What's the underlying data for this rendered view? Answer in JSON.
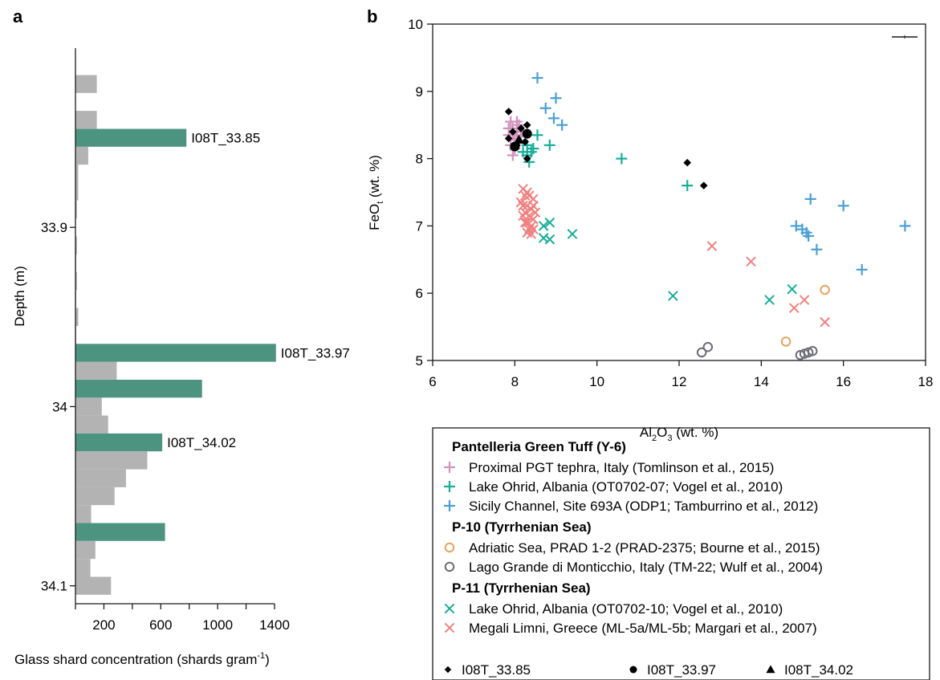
{
  "chart_data": [
    {
      "type": "bar",
      "orientation": "horizontal",
      "panel_label": "a",
      "xlabel": "Glass shard concentration (shards gram",
      "xlabel_sup": "-1",
      "xlabel_tail": ")",
      "ylabel": "Depth (m)",
      "xlim": [
        0,
        1400
      ],
      "ylim": [
        34.11,
        33.8
      ],
      "xticks": [
        "200",
        "600",
        "1000",
        "1400"
      ],
      "yticks": [
        "33.9",
        "34",
        "34.1"
      ],
      "bar_height": 0.01,
      "grey_color": "#b3b3b3",
      "green_color": "#4d9480",
      "background_bars": [
        {
          "depth": 33.82,
          "value": 150
        },
        {
          "depth": 33.84,
          "value": 150
        },
        {
          "depth": 33.86,
          "value": 90
        },
        {
          "depth": 33.87,
          "value": 20
        },
        {
          "depth": 33.88,
          "value": 20
        },
        {
          "depth": 33.89,
          "value": 10
        },
        {
          "depth": 33.91,
          "value": 10
        },
        {
          "depth": 33.92,
          "value": 5
        },
        {
          "depth": 33.93,
          "value": 10
        },
        {
          "depth": 33.94,
          "value": 5
        },
        {
          "depth": 33.95,
          "value": 20
        },
        {
          "depth": 33.96,
          "value": 5
        },
        {
          "depth": 33.97,
          "value": 20
        },
        {
          "depth": 33.98,
          "value": 290
        },
        {
          "depth": 34.0,
          "value": 185
        },
        {
          "depth": 34.01,
          "value": 230
        },
        {
          "depth": 34.03,
          "value": 505
        },
        {
          "depth": 34.04,
          "value": 355
        },
        {
          "depth": 34.05,
          "value": 275
        },
        {
          "depth": 34.06,
          "value": 110
        },
        {
          "depth": 34.08,
          "value": 140
        },
        {
          "depth": 34.09,
          "value": 105
        },
        {
          "depth": 34.1,
          "value": 250
        }
      ],
      "highlighted_bars": [
        {
          "depth": 33.85,
          "value": 780,
          "label": "I08T_33.85"
        },
        {
          "depth": 33.97,
          "value": 1410,
          "label": "I08T_33.97"
        },
        {
          "depth": 33.99,
          "value": 890,
          "label": ""
        },
        {
          "depth": 34.02,
          "value": 610,
          "label": "I08T_34.02"
        },
        {
          "depth": 34.07,
          "value": 630,
          "label": ""
        }
      ]
    },
    {
      "type": "scatter",
      "panel_label": "b",
      "xlabel_main": "Al",
      "xlabel_sub1": "2",
      "xlabel_mid": "O",
      "xlabel_sub2": "3",
      "xlabel_tail": " (wt. %)",
      "ylabel_main": "FeO",
      "ylabel_sub": "t",
      "ylabel_tail": " (wt. %)",
      "xlim": [
        6,
        18
      ],
      "ylim": [
        5,
        10
      ],
      "xticks": [
        "6",
        "8",
        "10",
        "12",
        "14",
        "16",
        "18"
      ],
      "yticks": [
        "5",
        "6",
        "7",
        "8",
        "9",
        "10"
      ],
      "series": [
        {
          "name": "Proximal PGT tephra, Italy (Tomlinson et al., 2015)",
          "group": "Pantelleria Green Tuff (Y-6)",
          "marker": "plus",
          "color": "#d291bc",
          "points": [
            [
              7.85,
              8.35
            ],
            [
              7.9,
              8.55
            ],
            [
              7.95,
              8.45
            ],
            [
              8.0,
              8.3
            ],
            [
              7.9,
              8.2
            ],
            [
              8.05,
              8.4
            ],
            [
              8.1,
              8.5
            ],
            [
              7.95,
              8.05
            ],
            [
              8.15,
              8.35
            ],
            [
              8.0,
              8.15
            ],
            [
              7.85,
              8.45
            ],
            [
              8.1,
              8.25
            ],
            [
              8.2,
              8.4
            ],
            [
              8.05,
              8.55
            ],
            [
              7.95,
              8.35
            ]
          ]
        },
        {
          "name": "Lake Ohrid, Albania (OT0702-07; Vogel et al., 2010)",
          "group": "Pantelleria Green Tuff (Y-6)",
          "marker": "plus",
          "color": "#17ad98",
          "points": [
            [
              8.2,
              8.1
            ],
            [
              8.3,
              8.2
            ],
            [
              8.4,
              8.1
            ],
            [
              8.35,
              7.95
            ],
            [
              8.55,
              8.35
            ],
            [
              8.85,
              8.2
            ],
            [
              8.45,
              8.15
            ],
            [
              8.3,
              8.05
            ],
            [
              10.6,
              8.0
            ],
            [
              12.2,
              7.6
            ]
          ]
        },
        {
          "name": "Sicily Channel, Site 693A (ODP1; Tamburrino et al., 2012)",
          "group": "Pantelleria Green Tuff (Y-6)",
          "marker": "plus",
          "color": "#4a9fd4",
          "points": [
            [
              8.55,
              9.2
            ],
            [
              8.75,
              8.75
            ],
            [
              9.0,
              8.9
            ],
            [
              8.95,
              8.6
            ],
            [
              9.15,
              8.5
            ],
            [
              15.2,
              7.4
            ],
            [
              16.0,
              7.3
            ],
            [
              17.5,
              7.0
            ],
            [
              14.85,
              7.0
            ],
            [
              15.0,
              6.95
            ],
            [
              15.1,
              6.9
            ],
            [
              15.15,
              6.85
            ],
            [
              15.35,
              6.65
            ],
            [
              16.45,
              6.35
            ]
          ]
        },
        {
          "name": "Adriatic Sea, PRAD 1-2 (PRAD-2375; Bourne et al., 2015)",
          "group": "P-10 (Tyrrhenian Sea)",
          "marker": "circle",
          "color": "#e8a35e",
          "points": [
            [
              15.55,
              6.05
            ],
            [
              14.6,
              5.28
            ]
          ]
        },
        {
          "name": "Lago Grande di Monticchio, Italy (TM-22; Wulf et al., 2004)",
          "group": "P-10 (Tyrrhenian Sea)",
          "marker": "circle",
          "color": "#6b6b75",
          "points": [
            [
              12.55,
              5.12
            ],
            [
              12.7,
              5.2
            ],
            [
              14.95,
              5.08
            ],
            [
              15.05,
              5.1
            ],
            [
              15.15,
              5.12
            ],
            [
              15.25,
              5.14
            ]
          ]
        },
        {
          "name": "Lake Ohrid, Albania (OT0702-10; Vogel et al., 2010)",
          "group": "P-11 (Tyrrhenian Sea)",
          "marker": "x",
          "color": "#17ad98",
          "points": [
            [
              8.7,
              7.0
            ],
            [
              8.85,
              7.05
            ],
            [
              8.7,
              6.82
            ],
            [
              8.85,
              6.8
            ],
            [
              9.4,
              6.88
            ],
            [
              11.85,
              5.96
            ],
            [
              14.2,
              5.9
            ],
            [
              14.75,
              6.06
            ]
          ]
        },
        {
          "name": "Megali Limni, Greece (ML-5a/ML-5b; Margari et al., 2007)",
          "group": "P-11 (Tyrrhenian Sea)",
          "marker": "x",
          "color": "#f08080",
          "points": [
            [
              8.2,
              7.55
            ],
            [
              8.25,
              7.45
            ],
            [
              8.35,
              7.45
            ],
            [
              8.45,
              7.4
            ],
            [
              8.2,
              7.3
            ],
            [
              8.3,
              7.3
            ],
            [
              8.4,
              7.25
            ],
            [
              8.25,
              7.2
            ],
            [
              8.35,
              7.15
            ],
            [
              8.45,
              7.1
            ],
            [
              8.3,
              7.05
            ],
            [
              8.4,
              7.0
            ],
            [
              8.35,
              6.95
            ],
            [
              8.3,
              6.9
            ],
            [
              8.45,
              6.95
            ],
            [
              8.2,
              7.15
            ],
            [
              8.5,
              7.2
            ],
            [
              8.3,
              7.5
            ],
            [
              8.15,
              7.35
            ],
            [
              8.45,
              7.3
            ],
            [
              8.25,
              7.05
            ],
            [
              8.4,
              6.88
            ],
            [
              12.8,
              6.7
            ],
            [
              13.75,
              6.47
            ],
            [
              15.05,
              5.9
            ],
            [
              14.8,
              5.78
            ],
            [
              15.55,
              5.57
            ]
          ]
        }
      ],
      "sample_markers": [
        {
          "name": "I08T_33.85",
          "marker": "diamond",
          "color": "#000000",
          "points": [
            [
              7.85,
              8.7
            ],
            [
              7.85,
              8.3
            ],
            [
              7.95,
              8.4
            ],
            [
              8.05,
              8.2
            ],
            [
              8.15,
              8.45
            ],
            [
              8.3,
              8.5
            ],
            [
              8.3,
              8.0
            ],
            [
              8.25,
              8.25
            ],
            [
              12.2,
              7.94
            ],
            [
              12.6,
              7.6
            ]
          ]
        },
        {
          "name": "I08T_33.97",
          "marker": "dot",
          "color": "#000000",
          "points": [
            [
              8.0,
              8.18
            ],
            [
              8.3,
              8.37
            ]
          ]
        },
        {
          "name": "I08T_34.02",
          "marker": "triangle",
          "color": "#000000",
          "points": [
            [
              8.1,
              8.28
            ]
          ]
        }
      ],
      "legend": {
        "position": "below",
        "groups": [
          {
            "heading": "Pantelleria Green Tuff (Y-6)",
            "series": [
              0,
              1,
              2
            ]
          },
          {
            "heading": "P-10 (Tyrrhenian Sea)",
            "series": [
              3,
              4
            ]
          },
          {
            "heading": "P-11 (Tyrrhenian Sea)",
            "series": [
              5,
              6
            ]
          }
        ]
      }
    }
  ]
}
